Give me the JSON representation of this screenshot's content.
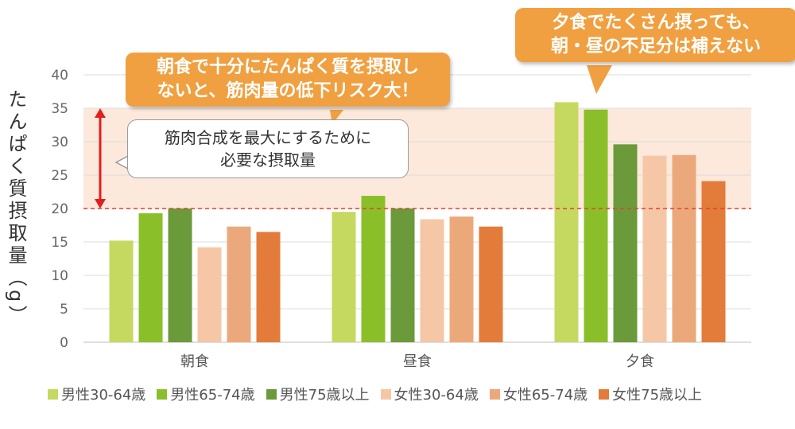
{
  "chart_data": {
    "type": "bar",
    "categories": [
      "朝食",
      "昼食",
      "夕食"
    ],
    "ylabel": "たんぱく質摂取量（g）",
    "ylim": [
      0,
      40
    ],
    "yticks": [
      0,
      5,
      10,
      15,
      20,
      25,
      30,
      35,
      40
    ],
    "grid": true,
    "legend_position": "bottom",
    "reference_line": 20,
    "highlight_band": [
      20,
      35
    ],
    "series": [
      {
        "name": "男性30-64歳",
        "color": "#c5d960",
        "values": [
          15.2,
          19.5,
          35.9
        ]
      },
      {
        "name": "男性65-74歳",
        "color": "#8bbf2a",
        "values": [
          19.3,
          21.9,
          34.8
        ]
      },
      {
        "name": "男性75歳以上",
        "color": "#6b9a3a",
        "values": [
          20.0,
          20.0,
          29.6
        ]
      },
      {
        "name": "女性30-64歳",
        "color": "#f5c7a6",
        "values": [
          14.2,
          18.4,
          27.9
        ]
      },
      {
        "name": "女性65-74歳",
        "color": "#eba97b",
        "values": [
          17.3,
          18.8,
          28.0
        ]
      },
      {
        "name": "女性75歳以上",
        "color": "#e37c3a",
        "values": [
          16.5,
          17.3,
          24.1
        ]
      }
    ]
  },
  "annotations": {
    "breakfast_warning": [
      "朝食で十分にたんぱく質を摂取し",
      "ないと、筋肉量の低下リスク大！"
    ],
    "dinner_warning": [
      "夕食でたくさん摂っても、",
      "朝・昼の不足分は補えない"
    ],
    "threshold_note": [
      "筋肉合成を最大にするために",
      "必要な摂取量"
    ]
  },
  "colors": {
    "callout": "#f0a040",
    "band": "#fde9dc",
    "reference_line": "#e8402a",
    "arrow": "#e02020"
  }
}
